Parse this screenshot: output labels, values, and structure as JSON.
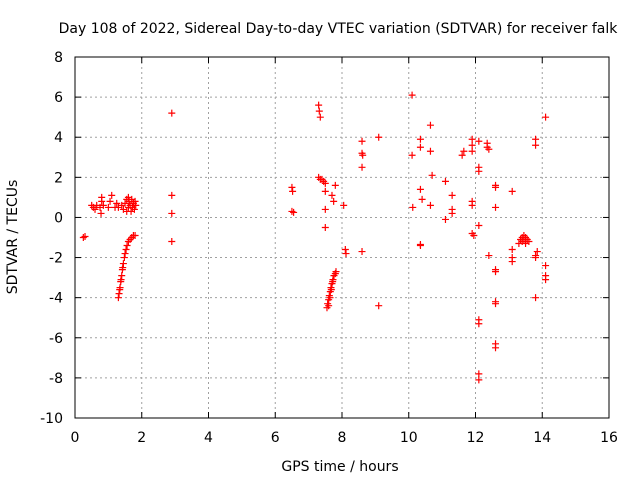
{
  "chart_data": {
    "type": "scatter",
    "title": "Day 108 of 2022, Sidereal Day-to-day VTEC variation (SDTVAR) for receiver falk",
    "xlabel": "GPS time / hours",
    "ylabel": "SDTVAR / TECUs",
    "xlim": [
      0,
      16
    ],
    "ylim": [
      -10,
      8
    ],
    "xticks": [
      0,
      2,
      4,
      6,
      8,
      10,
      12,
      14,
      16
    ],
    "yticks": [
      -10,
      -8,
      -6,
      -4,
      -2,
      0,
      2,
      4,
      6,
      8
    ],
    "xtick_labels": [
      "0",
      "2",
      "4",
      "6",
      "8",
      "10",
      "12",
      "14",
      "16"
    ],
    "ytick_labels": [
      "-10",
      "-8",
      "-6",
      "-4",
      "-2",
      "0",
      "2",
      "4",
      "6",
      "8"
    ],
    "grid": true,
    "marker": "plus",
    "color": "#ff0000",
    "series": [
      {
        "name": "SDTVAR",
        "points": [
          [
            0.25,
            -1.0
          ],
          [
            0.3,
            -0.95
          ],
          [
            0.5,
            0.6
          ],
          [
            0.55,
            0.5
          ],
          [
            0.6,
            0.4
          ],
          [
            0.65,
            0.6
          ],
          [
            0.75,
            0.5
          ],
          [
            0.8,
            0.8
          ],
          [
            0.78,
            0.2
          ],
          [
            0.8,
            1.0
          ],
          [
            0.85,
            0.6
          ],
          [
            1.0,
            0.5
          ],
          [
            1.05,
            0.8
          ],
          [
            1.1,
            1.1
          ],
          [
            1.2,
            0.5
          ],
          [
            1.25,
            0.7
          ],
          [
            1.3,
            0.5
          ],
          [
            1.4,
            0.6
          ],
          [
            1.45,
            0.4
          ],
          [
            1.5,
            0.7
          ],
          [
            1.55,
            0.9
          ],
          [
            1.6,
            0.5
          ],
          [
            1.62,
            0.8
          ],
          [
            1.65,
            0.6
          ],
          [
            1.68,
            0.3
          ],
          [
            1.7,
            0.9
          ],
          [
            1.72,
            0.5
          ],
          [
            1.75,
            0.7
          ],
          [
            1.78,
            0.4
          ],
          [
            1.8,
            0.8
          ],
          [
            1.82,
            0.6
          ],
          [
            1.55,
            0.3
          ],
          [
            1.6,
            1.0
          ],
          [
            1.3,
            -4.0
          ],
          [
            1.32,
            -3.8
          ],
          [
            1.35,
            -3.5
          ],
          [
            1.37,
            -3.2
          ],
          [
            1.4,
            -2.9
          ],
          [
            1.42,
            -2.6
          ],
          [
            1.45,
            -2.3
          ],
          [
            1.48,
            -2.0
          ],
          [
            1.5,
            -1.8
          ],
          [
            1.53,
            -1.6
          ],
          [
            1.56,
            -1.4
          ],
          [
            1.6,
            -1.2
          ],
          [
            1.65,
            -1.1
          ],
          [
            1.7,
            -1.0
          ],
          [
            1.75,
            -0.9
          ],
          [
            1.8,
            -0.9
          ],
          [
            1.34,
            -3.6
          ],
          [
            1.38,
            -3.1
          ],
          [
            1.43,
            -2.5
          ],
          [
            2.9,
            5.2
          ],
          [
            2.9,
            1.1
          ],
          [
            2.9,
            0.2
          ],
          [
            2.9,
            -1.2
          ],
          [
            6.5,
            1.5
          ],
          [
            6.52,
            1.3
          ],
          [
            6.5,
            0.3
          ],
          [
            6.55,
            0.25
          ],
          [
            7.3,
            5.6
          ],
          [
            7.32,
            5.3
          ],
          [
            7.35,
            5.0
          ],
          [
            7.3,
            2.0
          ],
          [
            7.35,
            1.9
          ],
          [
            7.4,
            1.9
          ],
          [
            7.45,
            1.8
          ],
          [
            7.5,
            1.7
          ],
          [
            7.5,
            1.3
          ],
          [
            7.5,
            0.4
          ],
          [
            7.5,
            -0.5
          ],
          [
            7.7,
            1.1
          ],
          [
            7.8,
            1.6
          ],
          [
            7.75,
            0.8
          ],
          [
            8.05,
            0.6
          ],
          [
            8.1,
            -1.6
          ],
          [
            8.12,
            -1.8
          ],
          [
            7.55,
            -4.5
          ],
          [
            7.57,
            -4.3
          ],
          [
            7.6,
            -4.1
          ],
          [
            7.62,
            -3.9
          ],
          [
            7.65,
            -3.7
          ],
          [
            7.67,
            -3.5
          ],
          [
            7.7,
            -3.3
          ],
          [
            7.73,
            -3.1
          ],
          [
            7.76,
            -2.9
          ],
          [
            7.8,
            -2.8
          ],
          [
            7.82,
            -2.7
          ],
          [
            7.6,
            -4.4
          ],
          [
            7.64,
            -4.0
          ],
          [
            7.68,
            -3.6
          ],
          [
            7.72,
            -3.2
          ],
          [
            8.6,
            3.8
          ],
          [
            8.6,
            3.2
          ],
          [
            8.62,
            3.1
          ],
          [
            8.6,
            2.5
          ],
          [
            8.6,
            -1.7
          ],
          [
            9.1,
            4.0
          ],
          [
            9.1,
            -4.4
          ],
          [
            10.1,
            6.1
          ],
          [
            10.1,
            3.1
          ],
          [
            10.12,
            0.5
          ],
          [
            10.35,
            3.9
          ],
          [
            10.35,
            3.5
          ],
          [
            10.35,
            1.4
          ],
          [
            10.4,
            0.9
          ],
          [
            10.35,
            -1.4
          ],
          [
            10.35,
            -1.35
          ],
          [
            10.65,
            4.6
          ],
          [
            10.65,
            3.3
          ],
          [
            10.7,
            2.1
          ],
          [
            10.65,
            0.6
          ],
          [
            11.1,
            1.8
          ],
          [
            11.1,
            -0.1
          ],
          [
            11.3,
            1.1
          ],
          [
            11.3,
            0.4
          ],
          [
            11.3,
            0.2
          ],
          [
            11.6,
            3.1
          ],
          [
            11.65,
            3.3
          ],
          [
            11.9,
            3.9
          ],
          [
            11.9,
            3.6
          ],
          [
            11.9,
            3.3
          ],
          [
            11.9,
            0.8
          ],
          [
            11.9,
            0.6
          ],
          [
            11.9,
            -0.8
          ],
          [
            11.95,
            -0.9
          ],
          [
            12.1,
            3.8
          ],
          [
            12.1,
            2.5
          ],
          [
            12.1,
            2.3
          ],
          [
            12.1,
            -0.4
          ],
          [
            12.1,
            -5.1
          ],
          [
            12.1,
            -5.3
          ],
          [
            12.1,
            -7.8
          ],
          [
            12.1,
            -8.1
          ],
          [
            12.35,
            3.7
          ],
          [
            12.35,
            3.5
          ],
          [
            12.4,
            -1.9
          ],
          [
            12.4,
            3.4
          ],
          [
            12.6,
            1.6
          ],
          [
            12.6,
            1.5
          ],
          [
            12.6,
            0.5
          ],
          [
            12.6,
            -2.6
          ],
          [
            12.6,
            -2.7
          ],
          [
            12.6,
            -4.2
          ],
          [
            12.6,
            -4.3
          ],
          [
            12.6,
            -6.3
          ],
          [
            12.6,
            -6.5
          ],
          [
            13.1,
            1.3
          ],
          [
            13.1,
            -1.6
          ],
          [
            13.1,
            -2.0
          ],
          [
            13.1,
            -2.2
          ],
          [
            13.3,
            -1.3
          ],
          [
            13.35,
            -1.1
          ],
          [
            13.4,
            -1.0
          ],
          [
            13.45,
            -0.9
          ],
          [
            13.5,
            -1.0
          ],
          [
            13.55,
            -1.1
          ],
          [
            13.6,
            -1.2
          ],
          [
            13.4,
            -1.2
          ],
          [
            13.5,
            -1.3
          ],
          [
            13.45,
            -1.1
          ],
          [
            13.8,
            3.9
          ],
          [
            13.8,
            3.6
          ],
          [
            13.85,
            -1.7
          ],
          [
            13.8,
            -1.9
          ],
          [
            13.8,
            -2.0
          ],
          [
            13.8,
            -4.0
          ],
          [
            14.1,
            5.0
          ],
          [
            14.1,
            -2.4
          ],
          [
            14.1,
            -2.9
          ],
          [
            14.1,
            -3.1
          ]
        ]
      }
    ]
  }
}
